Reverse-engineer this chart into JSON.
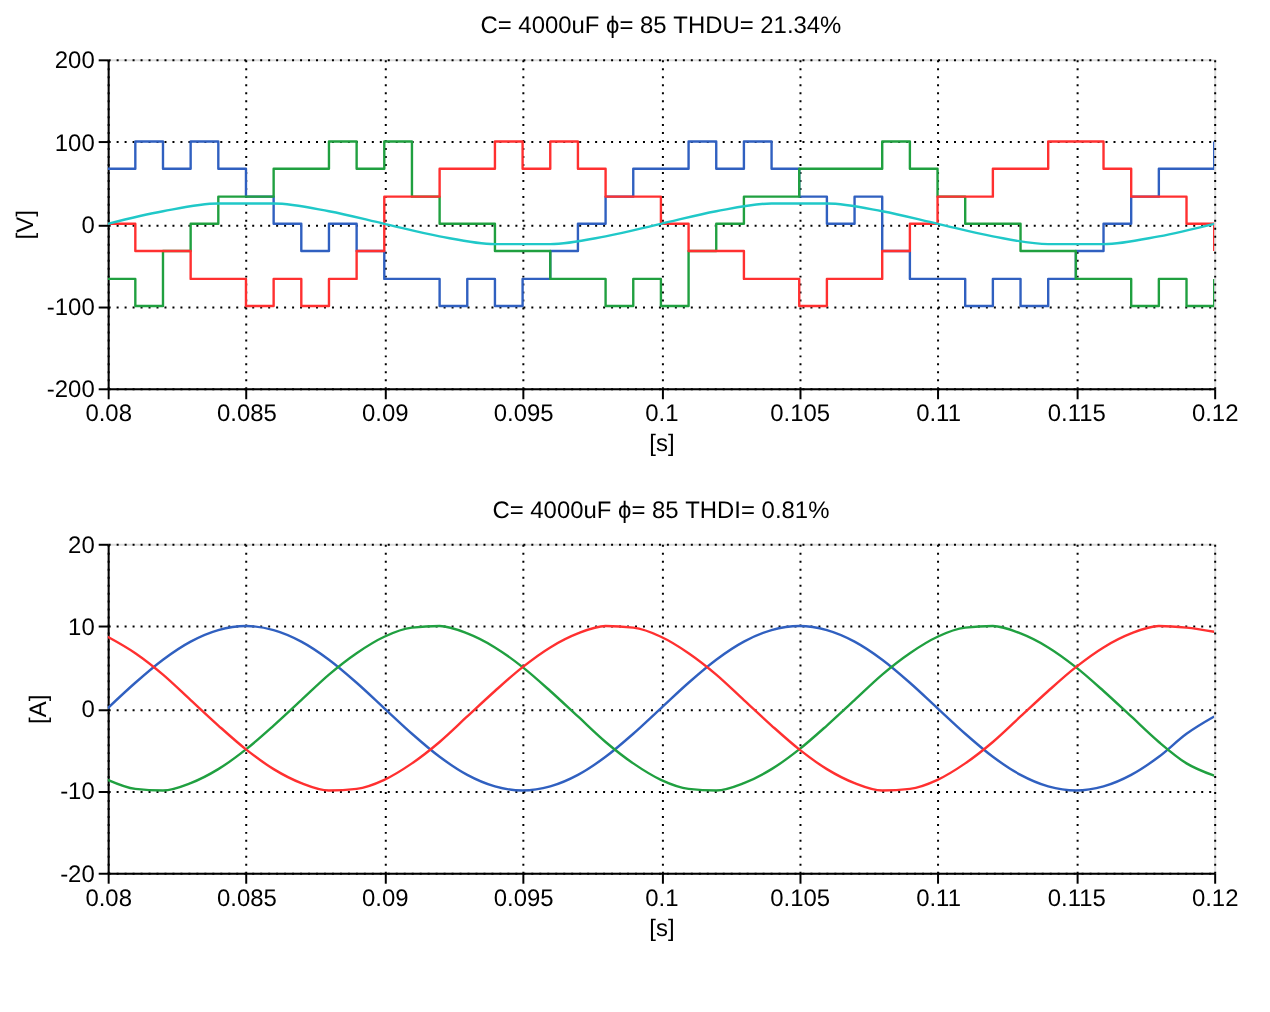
{
  "chart_data": [
    {
      "type": "step",
      "title": "C= 4000uF ϕ= 85 THDU= 21.34%",
      "xlabel": "[s]",
      "ylabel": "[V]",
      "x": [
        0.08,
        0.081,
        0.082,
        0.083,
        0.084,
        0.085,
        0.086,
        0.087,
        0.088,
        0.089,
        0.09,
        0.091,
        0.092,
        0.093,
        0.094,
        0.095,
        0.096,
        0.097,
        0.098,
        0.099,
        0.1,
        0.101,
        0.102,
        0.103,
        0.104,
        0.105,
        0.106,
        0.107,
        0.108,
        0.109,
        0.11,
        0.111,
        0.112,
        0.113,
        0.114,
        0.115,
        0.116,
        0.117,
        0.118,
        0.119,
        0.12
      ],
      "series": [
        {
          "color": "#3060c0",
          "values": [
            67,
            100,
            67,
            100,
            67,
            33,
            0,
            -33,
            0,
            -33,
            -67,
            -67,
            -100,
            -67,
            -100,
            -67,
            -33,
            0,
            33,
            67,
            67,
            100,
            67,
            100,
            67,
            33,
            0,
            33,
            -33,
            -67,
            -67,
            -100,
            -67,
            -100,
            -67,
            -33,
            0,
            33,
            67,
            67,
            100
          ]
        },
        {
          "color": "#20a040",
          "values": [
            -67,
            -100,
            -33,
            0,
            33,
            33,
            67,
            67,
            100,
            67,
            100,
            33,
            0,
            0,
            -33,
            -33,
            -67,
            -67,
            -100,
            -67,
            -100,
            -33,
            0,
            33,
            33,
            67,
            67,
            67,
            100,
            67,
            33,
            0,
            0,
            -33,
            -33,
            -67,
            -67,
            -100,
            -67,
            -100,
            -67
          ]
        },
        {
          "color": "#ff3030",
          "values": [
            0,
            -33,
            -33,
            -67,
            -67,
            -100,
            -67,
            -100,
            -67,
            -33,
            33,
            33,
            67,
            67,
            100,
            67,
            100,
            67,
            33,
            33,
            0,
            -33,
            -33,
            -67,
            -67,
            -100,
            -67,
            -67,
            -33,
            0,
            33,
            33,
            67,
            67,
            100,
            100,
            67,
            33,
            33,
            0,
            -33
          ]
        },
        {
          "type": "line",
          "color": "#20c8c8",
          "x": [
            0.08,
            0.082,
            0.084,
            0.086,
            0.088,
            0.09,
            0.092,
            0.094,
            0.096,
            0.098,
            0.1,
            0.102,
            0.104,
            0.106,
            0.108,
            0.11,
            0.112,
            0.114,
            0.116,
            0.118,
            0.12
          ],
          "values": [
            0,
            15.3,
            24.7,
            24.7,
            15.3,
            0,
            -15.3,
            -24.7,
            -24.7,
            -15.3,
            0,
            15.3,
            24.7,
            24.7,
            15.3,
            0,
            -15.3,
            -24.7,
            -24.7,
            -15.3,
            0
          ]
        }
      ],
      "xlim": [
        0.08,
        0.12
      ],
      "xticks": [
        0.08,
        0.085,
        0.09,
        0.095,
        0.1,
        0.105,
        0.11,
        0.115,
        0.12
      ],
      "ylim": [
        -200,
        200
      ],
      "yticks": [
        -200,
        -100,
        0,
        100,
        200
      ],
      "grid": true
    },
    {
      "type": "line",
      "title": "C= 4000uF ϕ= 85 THDI= 0.81%",
      "xlabel": "[s]",
      "ylabel": "[A]",
      "x": [
        0.08,
        0.081,
        0.082,
        0.083,
        0.084,
        0.085,
        0.086,
        0.087,
        0.088,
        0.089,
        0.09,
        0.091,
        0.092,
        0.093,
        0.094,
        0.095,
        0.096,
        0.097,
        0.098,
        0.099,
        0.1,
        0.101,
        0.102,
        0.103,
        0.104,
        0.105,
        0.106,
        0.107,
        0.108,
        0.109,
        0.11,
        0.111,
        0.112,
        0.113,
        0.114,
        0.115,
        0.116,
        0.117,
        0.118,
        0.119,
        0.12
      ],
      "series": [
        {
          "color": "#3060c0",
          "values": [
            0,
            3.1,
            5.9,
            8.1,
            9.5,
            10,
            9.5,
            8.1,
            5.9,
            3.1,
            0,
            -3.1,
            -5.9,
            -8.1,
            -9.5,
            -10,
            -9.5,
            -8.1,
            -5.9,
            -3.1,
            0,
            3.1,
            5.9,
            8.1,
            9.5,
            10,
            9.5,
            8.1,
            5.9,
            3.1,
            0,
            -3.1,
            -5.9,
            -8.1,
            -9.5,
            -10,
            -9.5,
            -8.1,
            -5.9,
            -3.1,
            -1
          ]
        },
        {
          "color": "#20a040",
          "values": [
            -8.7,
            -9.8,
            -10,
            -9.1,
            -7.4,
            -5,
            -2.1,
            1,
            4.1,
            6.7,
            8.7,
            9.8,
            10,
            9.1,
            7.4,
            5,
            2.1,
            -1,
            -4.1,
            -6.7,
            -8.7,
            -9.8,
            -10,
            -9.1,
            -7.4,
            -5,
            -2.1,
            1,
            4.1,
            6.7,
            8.7,
            9.8,
            10,
            9.1,
            7.4,
            5,
            2.1,
            -1,
            -4.1,
            -6.7,
            -8.2
          ]
        },
        {
          "color": "#ff3030",
          "values": [
            8.7,
            6.7,
            4.1,
            1,
            -2.1,
            -5,
            -7.4,
            -9.1,
            -10,
            -9.8,
            -8.7,
            -6.7,
            -4.1,
            -1,
            2.1,
            5,
            7.4,
            9.1,
            10,
            9.8,
            8.7,
            6.7,
            4.1,
            1,
            -2.1,
            -5,
            -7.4,
            -9.1,
            -10,
            -9.8,
            -8.7,
            -6.7,
            -4.1,
            -1,
            2.1,
            5,
            7.4,
            9.1,
            10,
            9.8,
            9.3
          ]
        }
      ],
      "xlim": [
        0.08,
        0.12
      ],
      "xticks": [
        0.08,
        0.085,
        0.09,
        0.095,
        0.1,
        0.105,
        0.11,
        0.115,
        0.12
      ],
      "ylim": [
        -20,
        20
      ],
      "yticks": [
        -20,
        -10,
        0,
        10,
        20
      ],
      "grid": true
    }
  ]
}
